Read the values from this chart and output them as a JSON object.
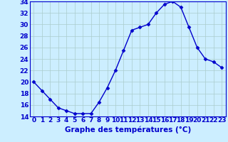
{
  "hours": [
    0,
    1,
    2,
    3,
    4,
    5,
    6,
    7,
    8,
    9,
    10,
    11,
    12,
    13,
    14,
    15,
    16,
    17,
    18,
    19,
    20,
    21,
    22,
    23
  ],
  "temperatures": [
    20,
    18.5,
    17,
    15.5,
    15,
    14.5,
    14.5,
    14.5,
    16.5,
    19,
    22,
    25.5,
    29,
    29.5,
    30,
    32,
    33.5,
    34,
    33,
    29.5,
    26,
    24,
    23.5,
    22.5
  ],
  "line_color": "#0000cc",
  "marker": "D",
  "marker_size": 2.5,
  "bg_color": "#cceeff",
  "grid_color": "#aacccc",
  "xlabel": "Graphe des températures (°C)",
  "ylim": [
    14,
    34
  ],
  "yticks": [
    14,
    16,
    18,
    20,
    22,
    24,
    26,
    28,
    30,
    32,
    34
  ],
  "xlim": [
    -0.5,
    23.5
  ],
  "xticks": [
    0,
    1,
    2,
    3,
    4,
    5,
    6,
    7,
    8,
    9,
    10,
    11,
    12,
    13,
    14,
    15,
    16,
    17,
    18,
    19,
    20,
    21,
    22,
    23
  ],
  "xlabel_color": "#0000cc",
  "xlabel_fontsize": 7.5,
  "tick_fontsize": 6.5,
  "tick_color": "#0000cc",
  "spine_color": "#0000cc",
  "line_width": 1.0
}
